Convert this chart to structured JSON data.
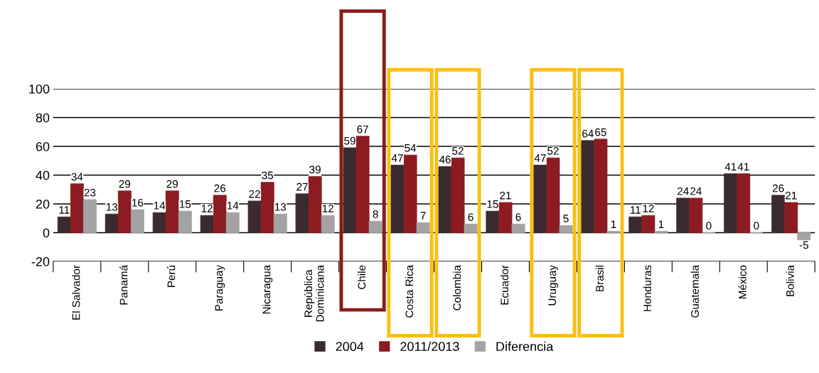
{
  "chart_data": {
    "type": "bar",
    "categories": [
      "El Salvador",
      "Panamá",
      "Perú",
      "Paraguay",
      "Nicaragua",
      "República\nDominicana",
      "Chile",
      "Costa Rica",
      "Colombia",
      "Ecuador",
      "Uruguay",
      "Brasil",
      "Honduras",
      "Guatemala",
      "México",
      "Bolivia"
    ],
    "series": [
      {
        "name": "2004",
        "color": "#3b2a2e",
        "values": [
          11,
          13,
          14,
          12,
          22,
          27,
          59,
          47,
          46,
          15,
          47,
          64,
          11,
          24,
          41,
          26
        ]
      },
      {
        "name": "2011/2013",
        "color": "#8c1c22",
        "values": [
          34,
          29,
          29,
          26,
          35,
          39,
          67,
          54,
          52,
          21,
          52,
          65,
          12,
          24,
          41,
          21
        ]
      },
      {
        "name": "Diferencia",
        "color": "#a3a3a3",
        "values": [
          23,
          16,
          15,
          14,
          13,
          12,
          8,
          7,
          6,
          6,
          5,
          1,
          1,
          0,
          0,
          -5
        ]
      }
    ],
    "ylim": [
      -20,
      100
    ],
    "yticks": [
      -20,
      0,
      20,
      40,
      60,
      80,
      100
    ],
    "grid": "y",
    "legend": "bottom",
    "data_labels": true
  }
}
